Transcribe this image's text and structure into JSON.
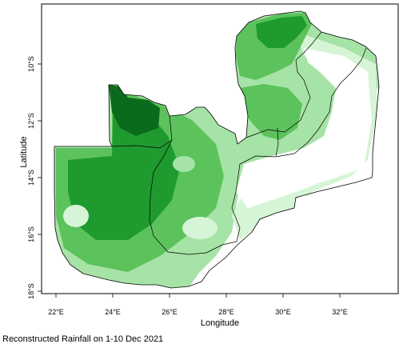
{
  "figure": {
    "caption": "Reconstructed Rainfall on  1-10 Dec 2021",
    "xlabel": "Longitude",
    "ylabel": "Latitude"
  },
  "axes": {
    "x_ticks": [
      "22°E",
      "24°E",
      "26°E",
      "28°E",
      "30°E",
      "32°E"
    ],
    "y_ticks": [
      "10°S",
      "12°S",
      "14°S",
      "16°S",
      "18°S"
    ]
  },
  "colors": {
    "lightest": "#d6f5d6",
    "light": "#a6e3a6",
    "medium": "#5cc25c",
    "dark": "#1f9a2f",
    "darkest": "#0a6b1c",
    "border": "#000000"
  }
}
